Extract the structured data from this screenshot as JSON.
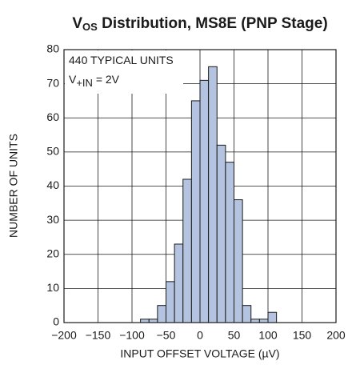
{
  "chart_data": {
    "type": "histogram",
    "title": {
      "main": "V",
      "sub": "OS",
      "rest": " Distribution, MS8E (PNP Stage)"
    },
    "annotations": [
      {
        "main": "440 TYPICAL UNITS"
      },
      {
        "main": "V",
        "sub": "+IN",
        "rest": " = 2V"
      }
    ],
    "x_label": "INPUT OFFSET VOLTAGE (µV)",
    "y_label": "NUMBER OF UNITS",
    "bins": [
      -87.5,
      -75,
      -62.5,
      -50,
      -37.5,
      -25,
      -12.5,
      0,
      12.5,
      25,
      37.5,
      50,
      62.5,
      75,
      87.5,
      100,
      112.5
    ],
    "counts": [
      1,
      1,
      5,
      12,
      23,
      42,
      65,
      71,
      75,
      52,
      47,
      36,
      5,
      1,
      1,
      3
    ],
    "color": "#b4c3e0",
    "edge_color": "#1a1a1a",
    "xlim": [
      -200,
      200
    ],
    "xticks": [
      {
        "value": -200,
        "label": "−200"
      },
      {
        "value": -150,
        "label": "−150"
      },
      {
        "value": -100,
        "label": "−100"
      },
      {
        "value": -50,
        "label": "−50"
      },
      0,
      50,
      100,
      150,
      200
    ],
    "ylim": [
      0,
      80
    ],
    "yticks": [
      0,
      10,
      20,
      30,
      40,
      50,
      60,
      70,
      80
    ],
    "grid": true
  }
}
